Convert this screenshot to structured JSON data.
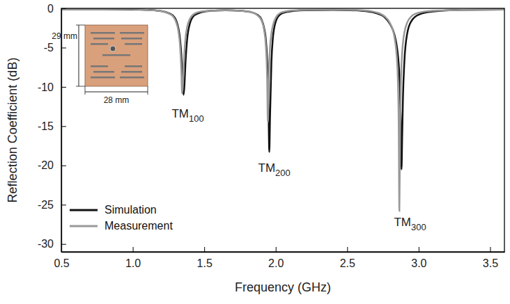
{
  "chart_data": {
    "type": "line",
    "x_label": "Frequency (GHz)",
    "y_label": "Reflection Coefficient (dB)",
    "xlim": [
      0.5,
      3.6
    ],
    "ylim": [
      -31,
      0
    ],
    "xticks": [
      0.5,
      {
        "value": 1,
        "label": "1.0"
      },
      1.5,
      {
        "value": 2,
        "label": "2.0"
      },
      2.5,
      {
        "value": 3,
        "label": "3.0"
      },
      3.5
    ],
    "yticks": [
      0,
      -5,
      -10,
      -15,
      -20,
      -25,
      -30
    ],
    "grid": false,
    "legend": "lower left",
    "x": [
      0.5,
      0.8,
      1.0,
      1.1,
      1.15,
      1.2,
      1.25,
      1.28,
      1.3,
      1.32,
      1.33,
      1.34,
      1.345,
      1.35,
      1.355,
      1.36,
      1.37,
      1.38,
      1.4,
      1.43,
      1.48,
      1.55,
      1.65,
      1.75,
      1.82,
      1.87,
      1.9,
      1.92,
      1.93,
      1.94,
      1.945,
      1.95,
      1.955,
      1.96,
      1.97,
      1.98,
      2.0,
      2.03,
      2.08,
      2.2,
      2.4,
      2.6,
      2.7,
      2.76,
      2.8,
      2.83,
      2.85,
      2.86,
      2.865,
      2.87,
      2.875,
      2.88,
      2.885,
      2.89,
      2.9,
      2.92,
      2.95,
      3.0,
      3.1,
      3.3,
      3.6
    ],
    "series": [
      {
        "name": "Simulation",
        "color": "#111111",
        "line_style": "solid",
        "values": [
          -0.1,
          -0.1,
          -0.15,
          -0.2,
          -0.25,
          -0.35,
          -0.6,
          -0.9,
          -1.4,
          -2.6,
          -3.8,
          -6.0,
          -7.8,
          -9.8,
          -11.0,
          -10.2,
          -6.5,
          -4.0,
          -1.9,
          -0.9,
          -0.5,
          -0.3,
          -0.25,
          -0.3,
          -0.45,
          -0.8,
          -1.4,
          -2.6,
          -3.8,
          -6.5,
          -9.0,
          -13.5,
          -18.3,
          -14.0,
          -6.8,
          -3.8,
          -1.7,
          -0.8,
          -0.45,
          -0.25,
          -0.2,
          -0.3,
          -0.6,
          -1.1,
          -2.0,
          -3.3,
          -5.2,
          -7.0,
          -8.5,
          -11.0,
          -15.0,
          -20.5,
          -16.0,
          -11.5,
          -6.8,
          -3.2,
          -1.6,
          -0.8,
          -0.4,
          -0.2,
          -0.15
        ]
      },
      {
        "name": "Measurement",
        "color": "#999999",
        "line_style": "solid",
        "values": [
          -0.1,
          -0.1,
          -0.12,
          -0.2,
          -0.25,
          -0.35,
          -0.65,
          -1.0,
          -1.6,
          -3.0,
          -4.6,
          -8.0,
          -10.8,
          -10.0,
          -8.0,
          -6.0,
          -3.6,
          -2.4,
          -1.3,
          -0.7,
          -0.4,
          -0.3,
          -0.25,
          -0.3,
          -0.45,
          -0.85,
          -1.5,
          -2.9,
          -4.5,
          -9.0,
          -14.5,
          -11.0,
          -7.0,
          -5.0,
          -3.2,
          -2.2,
          -1.2,
          -0.6,
          -0.35,
          -0.2,
          -0.15,
          -0.25,
          -0.5,
          -1.0,
          -1.9,
          -3.6,
          -7.0,
          -14.0,
          -25.8,
          -16.0,
          -10.0,
          -7.2,
          -5.5,
          -4.4,
          -3.1,
          -1.8,
          -1.0,
          -0.55,
          -0.3,
          -0.2,
          -0.15
        ]
      }
    ],
    "annotations": [
      {
        "text": "TM",
        "subscript": "100",
        "x": 1.385,
        "y": -13.9
      },
      {
        "text": "TM",
        "subscript": "200",
        "x": 1.99,
        "y": -20.8
      },
      {
        "text": "TM",
        "subscript": "300",
        "x": 2.94,
        "y": -27.7
      }
    ],
    "inset": {
      "height_label": "29 mm",
      "width_label": "28 mm"
    }
  }
}
